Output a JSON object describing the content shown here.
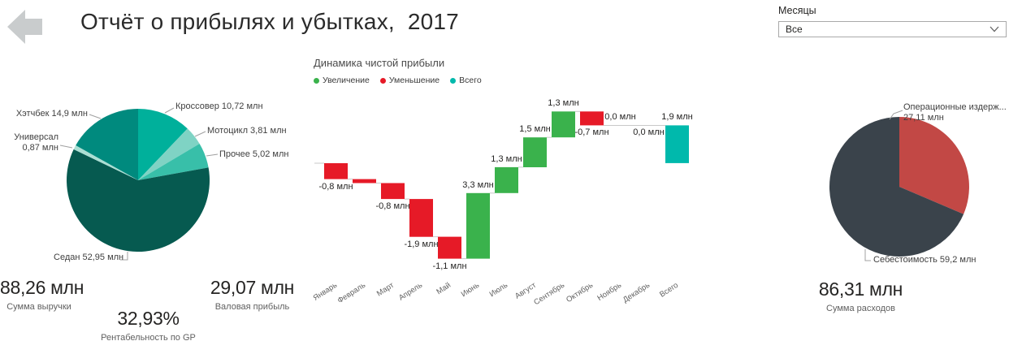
{
  "header": {
    "title": "Отчёт о прибылях и убытках,  2017"
  },
  "slicer": {
    "label": "Месяцы",
    "value": "Все"
  },
  "kpis": [
    {
      "value": "88,26 млн",
      "label": "Сумма выручки"
    },
    {
      "value": "29,07 млн",
      "label": "Валовая прибыль"
    },
    {
      "value": "32,93%",
      "label": "Рентабельность по GP"
    },
    {
      "value": "86,31 млн",
      "label": "Сумма расходов"
    }
  ],
  "chart_data": [
    {
      "type": "pie",
      "legend_position": "none",
      "slices": [
        {
          "label": "Кроссовер",
          "value": 10.72,
          "display": [
            "Кроссовер 10,72 млн"
          ],
          "color": "#00b09b"
        },
        {
          "label": "Мотоцикл",
          "value": 3.81,
          "display": [
            "Мотоцикл 3,81 млн"
          ],
          "color": "#7fd3c4"
        },
        {
          "label": "Прочее",
          "value": 5.02,
          "display": [
            "Прочее 5,02 млн"
          ],
          "color": "#38bfa9"
        },
        {
          "label": "Седан",
          "value": 52.95,
          "display": [
            "Седан 52,95 млн"
          ],
          "color": "#065a50"
        },
        {
          "label": "Универсал",
          "value": 0.87,
          "display": [
            "Универсал",
            "0,87 млн"
          ],
          "color": "#abdfd4"
        },
        {
          "label": "Хэтчбек",
          "value": 14.9,
          "display": [
            "Хэтчбек 14,9 млн"
          ],
          "color": "#008a7e"
        }
      ]
    },
    {
      "type": "waterfall",
      "title": "Динамика чистой прибыли",
      "legend_position": "top",
      "legend": [
        {
          "label": "Увеличение",
          "color": "#3ab24c"
        },
        {
          "label": "Уменьшение",
          "color": "#e61a27"
        },
        {
          "label": "Всего",
          "color": "#00b9ac"
        }
      ],
      "categories": [
        "Январь",
        "Февраль",
        "Март",
        "Апрель",
        "Май",
        "Июнь",
        "Июль",
        "Август",
        "Сентябрь",
        "Октябрь",
        "Ноябрь",
        "Декабрь",
        "Всего"
      ],
      "values": [
        -0.8,
        -0.2,
        -0.8,
        -1.9,
        -1.1,
        3.3,
        1.3,
        1.5,
        1.3,
        -0.7,
        0,
        0,
        1.9
      ],
      "bar_labels": [
        "-0,8 млн",
        "",
        "-0,8 млн",
        "-1,9 млн",
        "-1,1 млн",
        "3,3 млн",
        "1,3 млн",
        "1,5 млн",
        "1,3 млн",
        "-0,7 млн",
        "0,0 млн",
        "0,0 млн",
        "1,9 млн"
      ],
      "total_index": 12,
      "grid": false
    },
    {
      "type": "pie",
      "legend_position": "none",
      "slices": [
        {
          "label": "Операционные издержки",
          "value": 27.11,
          "display": [
            "Операционные издерж...",
            "27,11 млн"
          ],
          "color": "#c24845"
        },
        {
          "label": "Себестоимость",
          "value": 59.2,
          "display": [
            "Себестоимость 59,2 млн"
          ],
          "color": "#3a434b"
        }
      ]
    }
  ]
}
